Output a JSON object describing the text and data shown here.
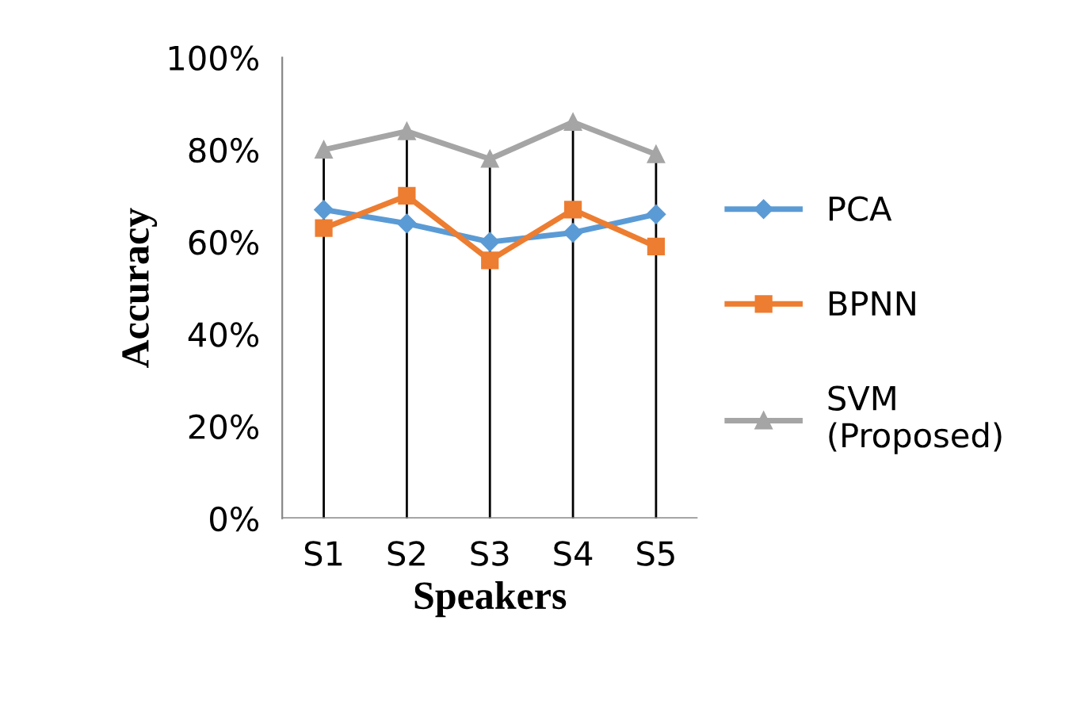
{
  "chart_data": {
    "type": "line",
    "xlabel": "Speakers",
    "ylabel": "Accuracy",
    "categories": [
      "S1",
      "S2",
      "S3",
      "S4",
      "S5"
    ],
    "series": [
      {
        "name": "PCA",
        "color": "#5b9bd5",
        "marker": "diamond",
        "values": [
          67,
          64,
          60,
          62,
          66
        ]
      },
      {
        "name": "BPNN",
        "color": "#ed7d31",
        "marker": "square",
        "values": [
          63,
          70,
          56,
          67,
          59
        ]
      },
      {
        "name": "SVM\n(Proposed)",
        "color": "#a5a5a5",
        "marker": "triangle",
        "values": [
          80,
          84,
          78,
          86,
          79
        ]
      }
    ],
    "ylim": [
      0,
      100
    ],
    "yticks": [
      {
        "value": 0,
        "label": "0%"
      },
      {
        "value": 20,
        "label": "20%"
      },
      {
        "value": 40,
        "label": "40%"
      },
      {
        "value": 60,
        "label": "60%"
      },
      {
        "value": 80,
        "label": "80%"
      },
      {
        "value": 100,
        "label": "100%"
      }
    ],
    "grid": "x",
    "legend": "right",
    "line_style": "solid"
  }
}
